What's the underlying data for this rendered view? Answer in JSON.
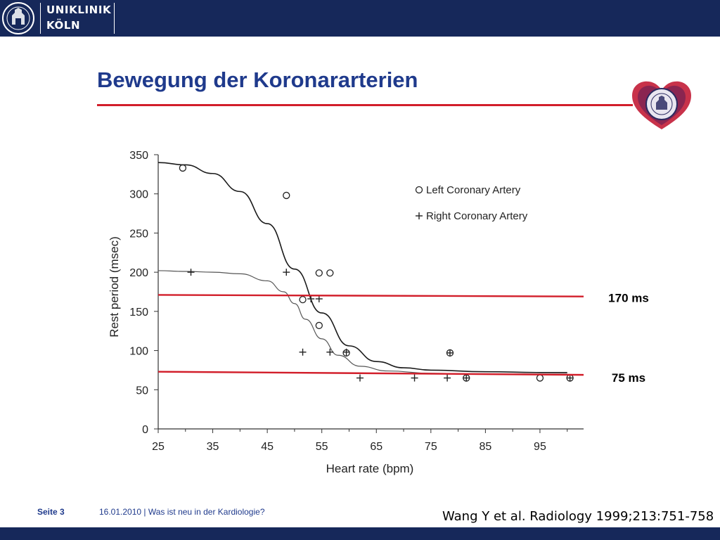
{
  "header": {
    "logo_line1": "UNIKLINIK",
    "logo_line2": "KÖLN"
  },
  "slide": {
    "title": "Bewegung der Koronararterien"
  },
  "footer": {
    "page_label": "Seite 3",
    "info": "16.01.2010 | Was ist neu in der Kardiologie?"
  },
  "citation": "Wang Y et al. Radiology 1999;213:751-758",
  "colors": {
    "navy": "#16285a",
    "title_blue": "#1f3a8c",
    "accent_red": "#d21e2a"
  },
  "chart_data": {
    "type": "scatter",
    "xlabel": "Heart rate (bpm)",
    "ylabel": "Rest period (msec)",
    "xlim": [
      25,
      103
    ],
    "ylim": [
      0,
      350
    ],
    "xticks": [
      25,
      35,
      45,
      55,
      65,
      75,
      85,
      95
    ],
    "yticks": [
      0,
      50,
      100,
      150,
      200,
      250,
      300,
      350
    ],
    "legend_position": "top-right",
    "series": [
      {
        "name": "Left Coronary Artery",
        "marker": "circle",
        "points": [
          [
            29.5,
            333
          ],
          [
            48.5,
            298
          ],
          [
            54.5,
            199
          ],
          [
            56.5,
            199
          ],
          [
            51.5,
            165
          ],
          [
            54.5,
            132
          ],
          [
            59.5,
            97
          ],
          [
            78.5,
            97
          ],
          [
            81.5,
            65
          ],
          [
            95,
            65
          ],
          [
            100.5,
            65
          ]
        ]
      },
      {
        "name": "Right Coronary Artery",
        "marker": "plus",
        "points": [
          [
            31,
            200
          ],
          [
            48.5,
            200
          ],
          [
            53,
            166
          ],
          [
            54.5,
            166
          ],
          [
            51.5,
            98
          ],
          [
            56.5,
            98
          ],
          [
            59.5,
            98
          ],
          [
            62,
            65
          ],
          [
            72,
            65
          ],
          [
            78,
            65
          ],
          [
            78.5,
            97
          ],
          [
            81.5,
            65
          ],
          [
            100.5,
            65
          ]
        ]
      }
    ],
    "fit_curves": [
      {
        "label": "Left Coronary Artery fit",
        "points": [
          [
            25,
            340
          ],
          [
            30,
            337
          ],
          [
            35,
            326
          ],
          [
            40,
            303
          ],
          [
            45,
            262
          ],
          [
            50,
            204
          ],
          [
            55,
            148
          ],
          [
            60,
            106
          ],
          [
            65,
            86
          ],
          [
            70,
            78
          ],
          [
            75,
            75
          ],
          [
            85,
            73
          ],
          [
            95,
            72
          ],
          [
            100,
            72
          ]
        ]
      },
      {
        "label": "Right Coronary Artery fit",
        "points": [
          [
            25,
            202
          ],
          [
            30,
            201
          ],
          [
            35,
            200
          ],
          [
            40,
            198
          ],
          [
            45,
            189
          ],
          [
            48,
            175
          ],
          [
            50,
            160
          ],
          [
            52,
            140
          ],
          [
            55,
            115
          ],
          [
            58,
            94
          ],
          [
            62,
            80
          ],
          [
            67,
            74
          ],
          [
            75,
            71
          ],
          [
            85,
            70
          ],
          [
            100,
            70
          ]
        ]
      }
    ],
    "reference_lines": [
      {
        "label": "170 ms",
        "y_start": 171,
        "y_end": 169
      },
      {
        "label": "75 ms",
        "y_start": 73,
        "y_end": 69
      }
    ]
  }
}
